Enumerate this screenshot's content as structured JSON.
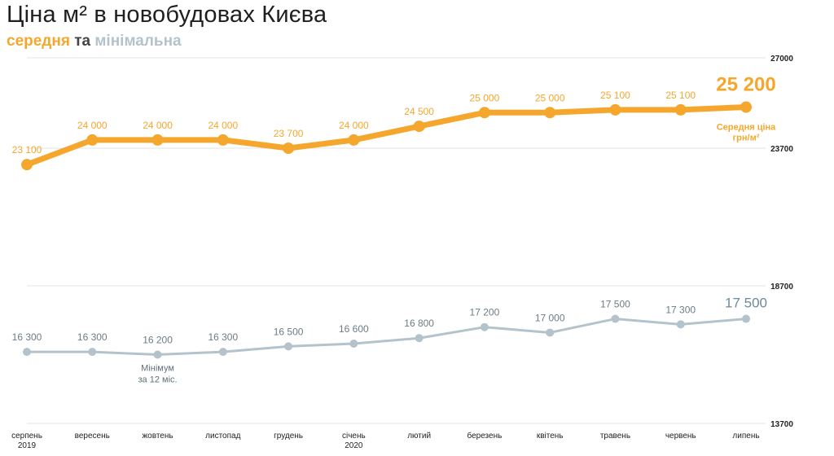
{
  "header": {
    "title": "Ціна м² в новобудовах Києва",
    "subtitle_avg": "середня",
    "subtitle_and": "та",
    "subtitle_min": "мінімальна"
  },
  "colors": {
    "average": "#f5a72d",
    "minimum": "#b4c3cb",
    "minimum_text": "#6b7c86",
    "grid": "#e3e3e3"
  },
  "chart_data": {
    "type": "line",
    "title": "Ціна м² в новобудовах Києва",
    "categories": [
      [
        "серпень",
        "2019"
      ],
      [
        "вересень"
      ],
      [
        "жовтень"
      ],
      [
        "листопад"
      ],
      [
        "грудень"
      ],
      [
        "січень",
        "2020"
      ],
      [
        "лютий"
      ],
      [
        "березень"
      ],
      [
        "квітень"
      ],
      [
        "травень"
      ],
      [
        "червень"
      ],
      [
        "липень"
      ]
    ],
    "y_ticks": [
      27000,
      23700,
      18700,
      13700
    ],
    "axis_segments": [
      {
        "range": [
          23700,
          27000
        ],
        "series": "average"
      },
      {
        "range": [
          13700,
          18700
        ],
        "series": "minimum"
      }
    ],
    "series": [
      {
        "key": "average",
        "values": [
          23100,
          24000,
          24000,
          24000,
          23700,
          24000,
          24500,
          25000,
          25000,
          25100,
          25100,
          25200
        ],
        "labels": [
          "23 100",
          "24 000",
          "24 000",
          "24 000",
          "23 700",
          "24 000",
          "24 500",
          "25 000",
          "25 000",
          "25 100",
          "25 100",
          "25 200"
        ]
      },
      {
        "key": "minimum",
        "values": [
          16300,
          16300,
          16200,
          16300,
          16500,
          16600,
          16800,
          17200,
          17000,
          17500,
          17300,
          17500
        ],
        "labels": [
          "16 300",
          "16 300",
          "16 200",
          "16 300",
          "16 500",
          "16 600",
          "16 800",
          "17 200",
          "17 000",
          "17 500",
          "17 300",
          "17 500"
        ]
      }
    ],
    "annotations": {
      "avg_note": [
        "Середня ціна",
        "грн/м²"
      ],
      "min_note": [
        "Мінімум",
        "за 12 міс."
      ]
    },
    "grid": true
  }
}
